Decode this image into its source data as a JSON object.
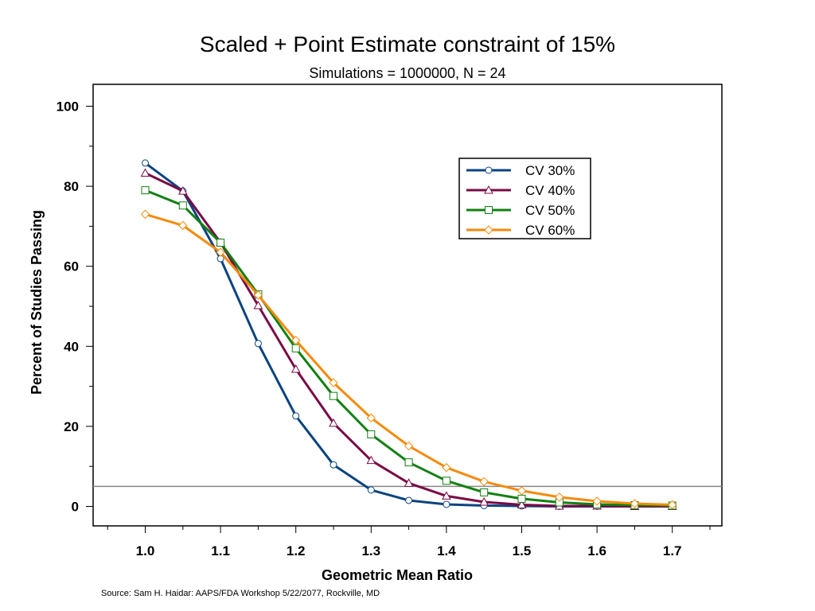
{
  "chart_data": {
    "type": "line",
    "title": "Scaled + Point Estimate constraint of 15%",
    "subtitle": "Simulations = 1000000, N = 24",
    "xlabel": "Geometric Mean Ratio",
    "ylabel": "Percent of Studies Passing",
    "xlim": [
      0.95,
      1.75
    ],
    "ylim": [
      -5,
      105
    ],
    "x_ticks": [
      "1.0",
      "1.1",
      "1.2",
      "1.3",
      "1.4",
      "1.5",
      "1.6",
      "1.7"
    ],
    "y_ticks": [
      "0",
      "20",
      "40",
      "60",
      "80",
      "100"
    ],
    "x": [
      1.0,
      1.05,
      1.1,
      1.15,
      1.2,
      1.25,
      1.3,
      1.35,
      1.4,
      1.45,
      1.5,
      1.55,
      1.6,
      1.65,
      1.7
    ],
    "reference_line": 5,
    "legend_position": "top-right",
    "grid": false,
    "series": [
      {
        "name": "CV 30%",
        "color": "#0a4480",
        "marker": "circle",
        "values": [
          85.8,
          78.8,
          61.9,
          40.7,
          22.6,
          10.4,
          4.1,
          1.5,
          0.5,
          0.2,
          0.1,
          0.0,
          0.0,
          0.0,
          0.0
        ]
      },
      {
        "name": "CV 40%",
        "color": "#7a0a45",
        "marker": "triangle",
        "values": [
          83.3,
          78.8,
          65.9,
          50.2,
          34.3,
          20.8,
          11.5,
          5.8,
          2.6,
          1.1,
          0.4,
          0.1,
          0.1,
          0.0,
          0.0
        ]
      },
      {
        "name": "CV 50%",
        "color": "#128012",
        "marker": "square",
        "values": [
          79.0,
          75.2,
          65.9,
          53.0,
          39.5,
          27.6,
          18.0,
          11.0,
          6.4,
          3.5,
          1.9,
          1.0,
          0.5,
          0.3,
          0.2
        ]
      },
      {
        "name": "CV 60%",
        "color": "#f58a0a",
        "marker": "diamond",
        "values": [
          73.0,
          70.2,
          63.5,
          52.8,
          41.5,
          30.9,
          22.1,
          15.1,
          9.7,
          6.2,
          3.9,
          2.3,
          1.3,
          0.7,
          0.4
        ]
      }
    ]
  },
  "source_text": "Source: Sam H. Haidar:  AAPS/FDA Workshop 5/22/2077, Rockville, MD"
}
